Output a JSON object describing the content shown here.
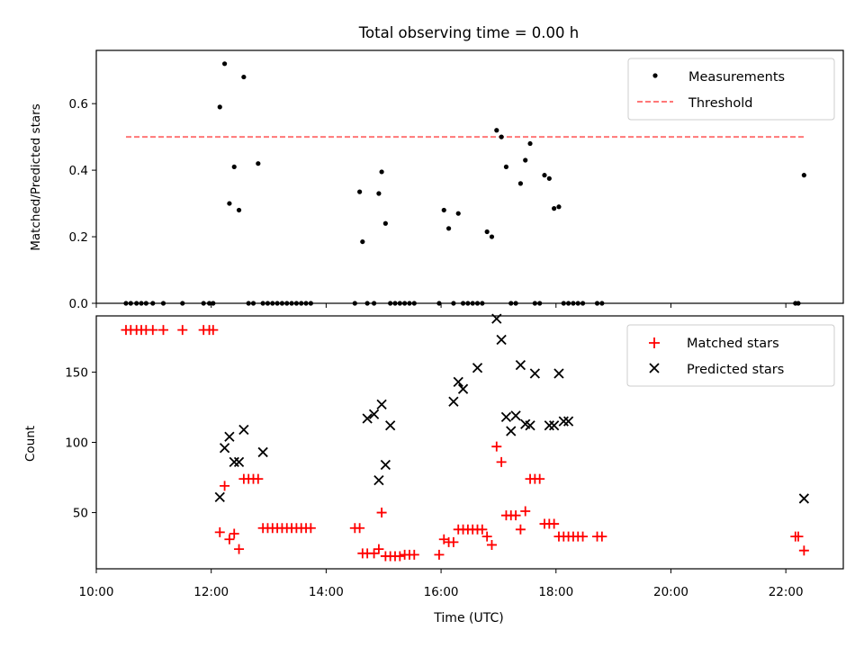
{
  "figure": {
    "title": "Total observing time = 0.00 h"
  },
  "chart_data": [
    {
      "type": "scatter",
      "ylabel": "Matched/Predicted stars",
      "ylim": [
        0,
        0.76
      ],
      "yticks": [
        0.0,
        0.2,
        0.4,
        0.6
      ],
      "ytick_labels": [
        "0.0",
        "0.2",
        "0.4",
        "0.6"
      ],
      "xlim": [
        "10:00",
        "23:00"
      ],
      "legend_position": "top-right",
      "series": [
        {
          "name": "Measurements",
          "marker": "dot",
          "color": "#000000",
          "x": [
            "10:31",
            "10:36",
            "10:42",
            "10:47",
            "10:52",
            "10:59",
            "11:10",
            "11:30",
            "11:52",
            "11:58",
            "12:02",
            "12:09",
            "12:14",
            "12:19",
            "12:24",
            "12:29",
            "12:34",
            "12:39",
            "12:44",
            "12:49",
            "12:54",
            "12:59",
            "13:04",
            "13:09",
            "13:14",
            "13:19",
            "13:24",
            "13:29",
            "13:34",
            "13:39",
            "13:44",
            "14:30",
            "14:35",
            "14:38",
            "14:43",
            "14:50",
            "14:55",
            "14:58",
            "15:02",
            "15:07",
            "15:12",
            "15:17",
            "15:22",
            "15:27",
            "15:32",
            "15:58",
            "16:03",
            "16:08",
            "16:13",
            "16:18",
            "16:23",
            "16:28",
            "16:33",
            "16:38",
            "16:43",
            "16:48",
            "16:53",
            "16:58",
            "17:03",
            "17:08",
            "17:13",
            "17:18",
            "17:23",
            "17:28",
            "17:33",
            "17:38",
            "17:43",
            "17:48",
            "17:53",
            "17:58",
            "18:03",
            "18:08",
            "18:13",
            "18:18",
            "18:23",
            "18:28",
            "18:43",
            "18:48",
            "22:10",
            "22:13",
            "22:19"
          ],
          "y": [
            0,
            0,
            0,
            0,
            0,
            0,
            0,
            0,
            0,
            0,
            0,
            0.59,
            0.72,
            0.3,
            0.41,
            0.28,
            0.68,
            0,
            0,
            0.42,
            0,
            0,
            0,
            0,
            0,
            0,
            0,
            0,
            0,
            0,
            0,
            0,
            0.335,
            0.185,
            0,
            0,
            0.33,
            0.395,
            0.24,
            0,
            0,
            0,
            0,
            0,
            0,
            0,
            0.28,
            0.225,
            0,
            0.27,
            0,
            0,
            0,
            0,
            0,
            0.215,
            0.2,
            0.52,
            0.5,
            0.41,
            0,
            0,
            0.36,
            0.43,
            0.48,
            0,
            0,
            0.385,
            0.375,
            0.285,
            0.29,
            0,
            0,
            0,
            0,
            0,
            0,
            0,
            0,
            0,
            0.385
          ]
        },
        {
          "name": "Threshold",
          "marker": "dashed-line",
          "color": "#ff7777",
          "x": [
            "10:31",
            "22:19"
          ],
          "y": [
            0.5,
            0.5
          ]
        }
      ]
    },
    {
      "type": "scatter",
      "xlabel": "Time (UTC)",
      "ylabel": "Count",
      "ylim": [
        10,
        190
      ],
      "yticks": [
        50,
        100,
        150
      ],
      "ytick_labels": [
        "50",
        "100",
        "150"
      ],
      "xlim": [
        "10:00",
        "23:00"
      ],
      "xticks": [
        "10:00",
        "12:00",
        "14:00",
        "16:00",
        "18:00",
        "20:00",
        "22:00"
      ],
      "xtick_labels": [
        "10:00",
        "12:00",
        "14:00",
        "16:00",
        "18:00",
        "20:00",
        "22:00"
      ],
      "legend_position": "top-right",
      "series": [
        {
          "name": "Matched stars",
          "marker": "plus",
          "color": "#ff0000",
          "x": [
            "10:31",
            "10:36",
            "10:42",
            "10:47",
            "10:52",
            "10:59",
            "11:10",
            "11:30",
            "11:52",
            "11:58",
            "12:02",
            "12:09",
            "12:14",
            "12:19",
            "12:24",
            "12:29",
            "12:34",
            "12:39",
            "12:44",
            "12:49",
            "12:54",
            "12:59",
            "13:04",
            "13:09",
            "13:14",
            "13:19",
            "13:24",
            "13:29",
            "13:34",
            "13:39",
            "13:44",
            "14:30",
            "14:35",
            "14:38",
            "14:43",
            "14:50",
            "14:55",
            "14:58",
            "15:02",
            "15:07",
            "15:12",
            "15:17",
            "15:22",
            "15:27",
            "15:32",
            "15:58",
            "16:03",
            "16:08",
            "16:13",
            "16:18",
            "16:23",
            "16:28",
            "16:33",
            "16:38",
            "16:43",
            "16:48",
            "16:53",
            "16:58",
            "17:03",
            "17:08",
            "17:13",
            "17:18",
            "17:23",
            "17:28",
            "17:33",
            "17:38",
            "17:43",
            "17:48",
            "17:53",
            "17:58",
            "18:03",
            "18:08",
            "18:13",
            "18:18",
            "18:23",
            "18:28",
            "18:43",
            "18:48",
            "22:10",
            "22:13",
            "22:19"
          ],
          "y": [
            180,
            180,
            180,
            180,
            180,
            180,
            180,
            180,
            180,
            180,
            180,
            36,
            69,
            31,
            35,
            24,
            74,
            74,
            74,
            74,
            39,
            39,
            39,
            39,
            39,
            39,
            39,
            39,
            39,
            39,
            39,
            39,
            39,
            21,
            21,
            21,
            24,
            50,
            19,
            19,
            19,
            19,
            20,
            20,
            20,
            20,
            31,
            29,
            29,
            38,
            38,
            38,
            38,
            38,
            38,
            33,
            27,
            97,
            86,
            48,
            48,
            48,
            38,
            51,
            74,
            74,
            74,
            42,
            42,
            42,
            33,
            33,
            33,
            33,
            33,
            33,
            33,
            33,
            33,
            33,
            23
          ]
        },
        {
          "name": "Predicted stars",
          "marker": "x",
          "color": "#000000",
          "x": [
            "12:09",
            "12:14",
            "12:19",
            "12:24",
            "12:29",
            "12:34",
            "12:54",
            "14:43",
            "14:50",
            "14:55",
            "14:58",
            "15:02",
            "15:07",
            "16:13",
            "16:18",
            "16:23",
            "16:38",
            "16:58",
            "17:03",
            "17:08",
            "17:13",
            "17:18",
            "17:23",
            "17:28",
            "17:33",
            "17:38",
            "17:53",
            "17:58",
            "18:03",
            "18:08",
            "18:13",
            "22:19"
          ],
          "y": [
            61,
            96,
            104,
            86,
            86,
            109,
            93,
            117,
            120,
            73,
            127,
            84,
            112,
            129,
            143,
            138,
            153,
            188,
            173,
            118,
            108,
            119,
            155,
            113,
            112,
            149,
            112,
            112,
            149,
            115,
            115,
            60
          ]
        }
      ]
    }
  ]
}
